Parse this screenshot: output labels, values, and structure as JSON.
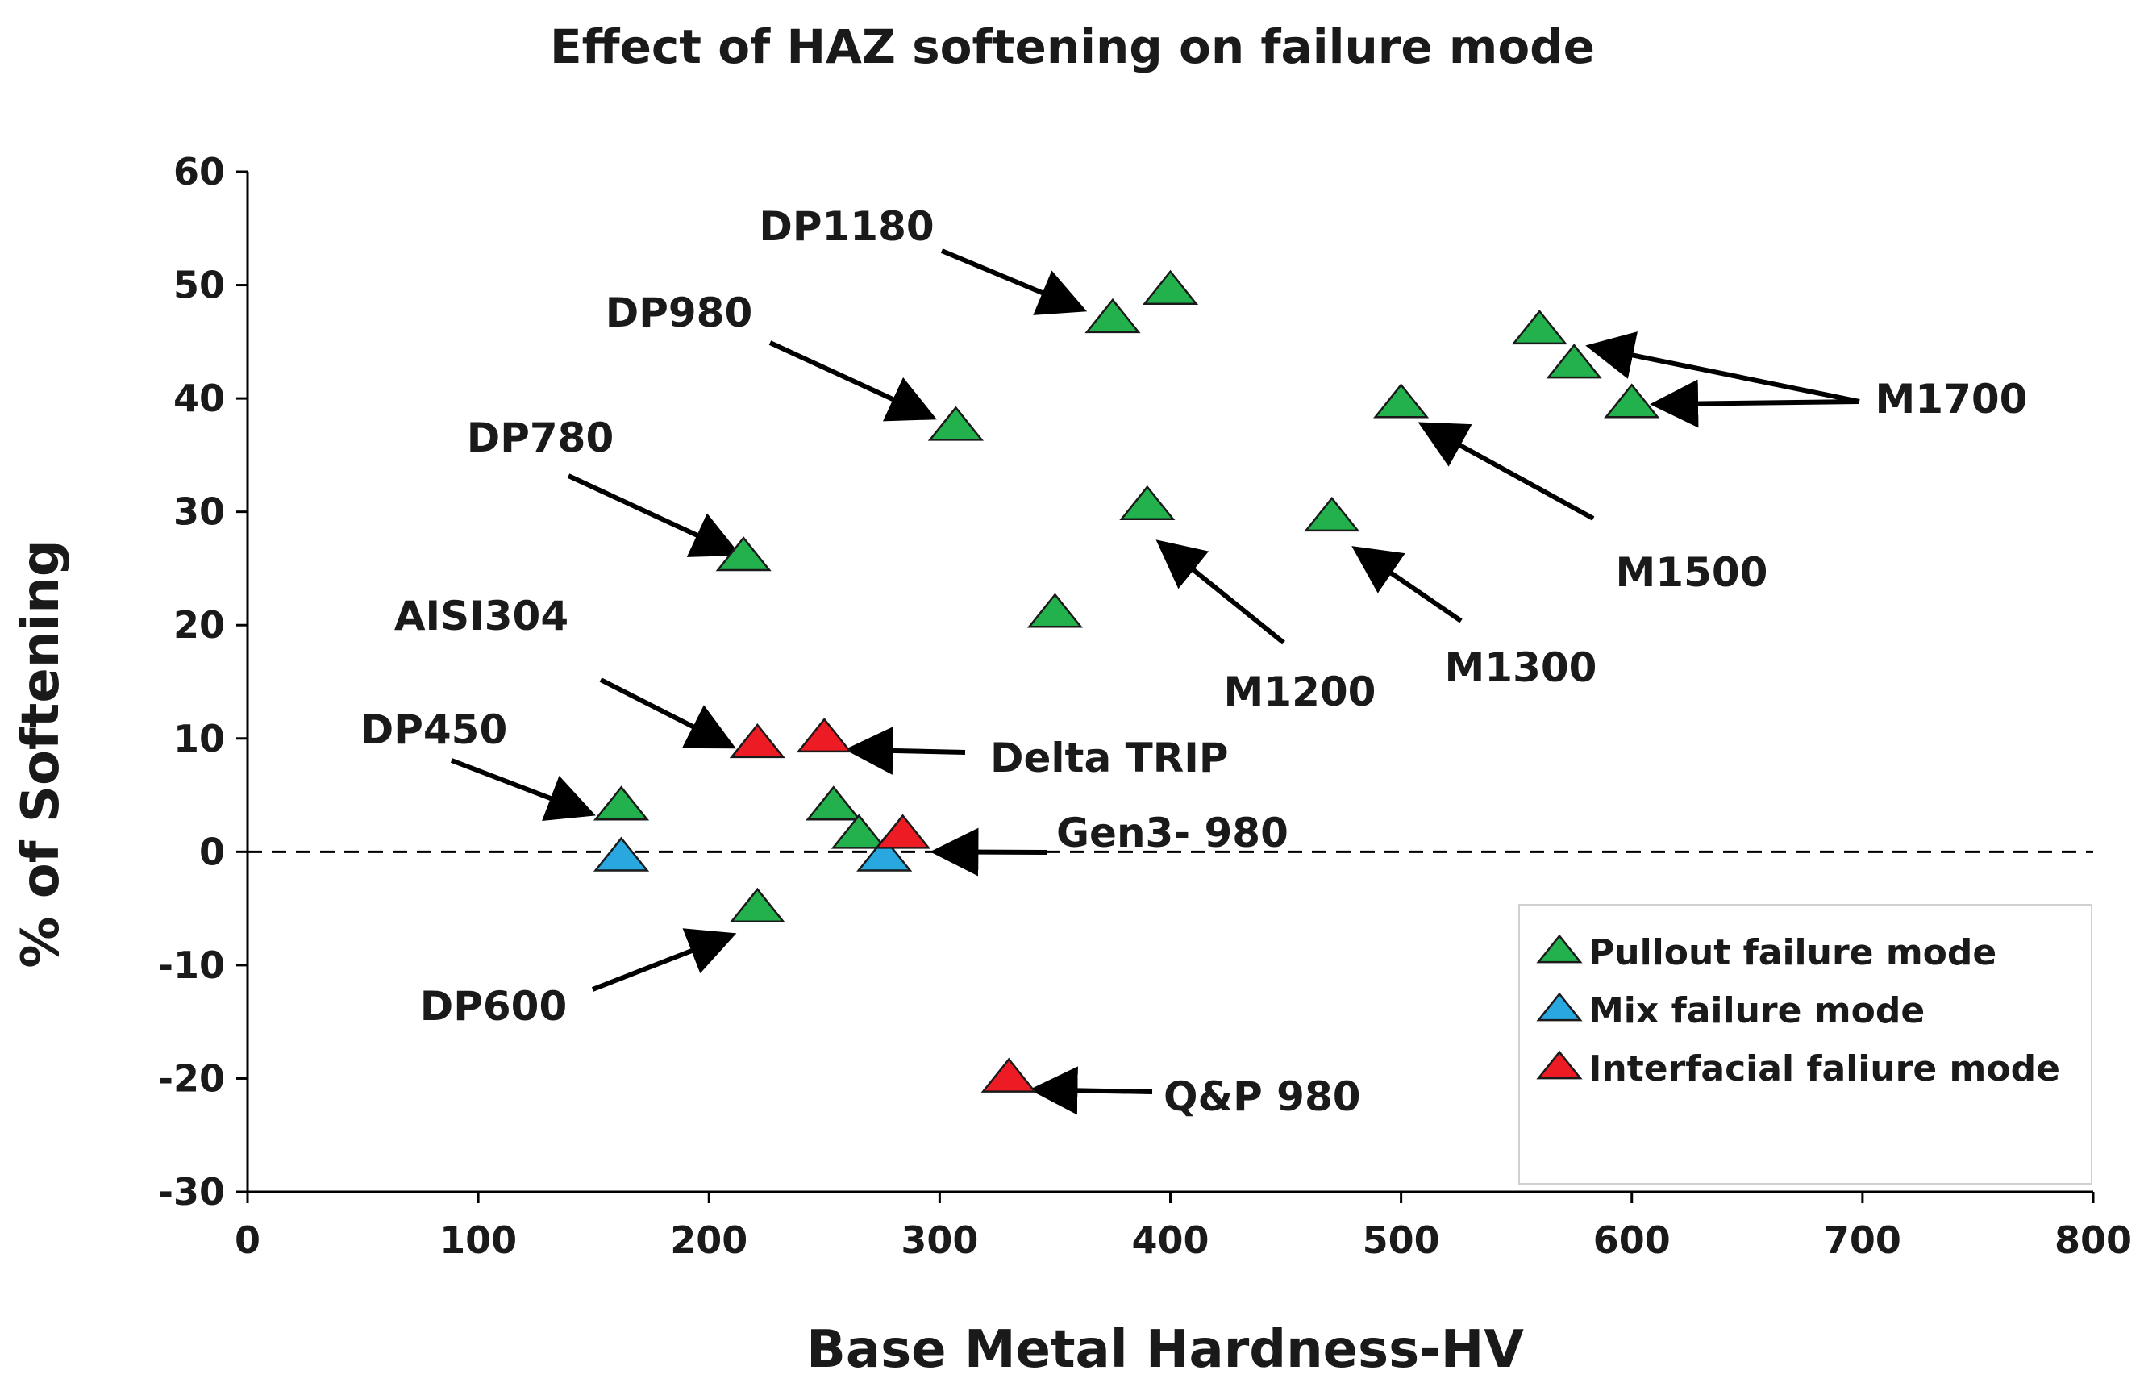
{
  "chart_data": {
    "type": "scatter",
    "title": "Effect of HAZ softening on failure mode",
    "xlabel": "Base Metal Hardness-HV",
    "ylabel": "% of Softening",
    "xlim": [
      0,
      800
    ],
    "ylim": [
      -30,
      60
    ],
    "xticks": [
      "0",
      "100",
      "200",
      "300",
      "400",
      "500",
      "600",
      "700",
      "800"
    ],
    "yticks": [
      "60",
      "50",
      "40",
      "30",
      "20",
      "10",
      "0",
      "-10",
      "-20",
      "-30"
    ],
    "reference_line": {
      "y": 0,
      "style": "dashed"
    },
    "legend_position": "bottom-right",
    "series": [
      {
        "name": "Pullout failure mode",
        "color": "#22b14c",
        "marker": "triangle",
        "points": [
          [
            375,
            47
          ],
          [
            400,
            49.5
          ],
          [
            307,
            37.5
          ],
          [
            215,
            26
          ],
          [
            390,
            30.5
          ],
          [
            350,
            21
          ],
          [
            470,
            29.5
          ],
          [
            500,
            39.5
          ],
          [
            560,
            46
          ],
          [
            575,
            43
          ],
          [
            600,
            39.5
          ],
          [
            162,
            4
          ],
          [
            254,
            4
          ],
          [
            265,
            1.5
          ],
          [
            221,
            -5
          ]
        ]
      },
      {
        "name": "Mix failure mode",
        "color": "#29a8e0",
        "marker": "triangle",
        "points": [
          [
            162,
            -0.5
          ],
          [
            276,
            -0.5
          ]
        ]
      },
      {
        "name": "Interfacial faliure mode",
        "color": "#ed1c24",
        "marker": "triangle",
        "points": [
          [
            221,
            9.5
          ],
          [
            250,
            10
          ],
          [
            284,
            1.5
          ],
          [
            330,
            -20
          ]
        ]
      }
    ],
    "annotations": [
      {
        "text": "DP1180",
        "target": [
          360,
          48
        ]
      },
      {
        "text": "DP980",
        "target": [
          295,
          38.5
        ]
      },
      {
        "text": "DP780",
        "target": [
          210,
          26.5
        ]
      },
      {
        "text": "AISI304",
        "target": [
          208,
          9.5
        ]
      },
      {
        "text": "DP450",
        "target": [
          147,
          3.5
        ]
      },
      {
        "text": "DP600",
        "target": [
          208,
          -7.5
        ]
      },
      {
        "text": "Delta TRIP",
        "target": [
          263,
          9
        ]
      },
      {
        "text": "Gen3- 980",
        "target": [
          300,
          0
        ]
      },
      {
        "text": "Q&P 980",
        "target": [
          343,
          -21
        ]
      },
      {
        "text": "M1200",
        "target": [
          397,
          27
        ]
      },
      {
        "text": "M1300",
        "target": [
          482,
          26.5
        ]
      },
      {
        "text": "M1500",
        "target": [
          511,
          37.5
        ]
      },
      {
        "text": "M1700",
        "targets": [
          [
            584,
            44.5
          ],
          [
            612,
            39.5
          ]
        ]
      }
    ]
  }
}
